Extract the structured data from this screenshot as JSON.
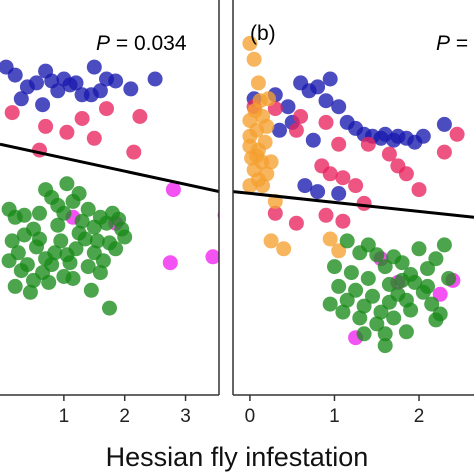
{
  "colors": {
    "blue": "#1a1ab0",
    "pink": "#e8245f",
    "magenta": "#ee22ee",
    "green": "#1a8a1a",
    "orange": "#f5a030",
    "line": "#000000",
    "frame": "#333333"
  },
  "xlabel": "Hessian fly infestation",
  "chart_data": [
    {
      "type": "scatter",
      "panel": "a",
      "label": "",
      "stat": "P = 0.034",
      "stat_parts": {
        "var": "P",
        "rest": " = 0.034"
      },
      "xlim": [
        -0.05,
        3.55
      ],
      "ylim": [
        0,
        10
      ],
      "xticks": [
        1,
        2,
        3
      ],
      "xtick_labels": [
        "1",
        "2",
        "3"
      ],
      "grid": false,
      "regression": {
        "x": [
          -0.05,
          3.55
        ],
        "y": [
          6.35,
          5.15
        ]
      },
      "groups": [
        {
          "color": "blue",
          "points": [
            [
              0.05,
              8.3
            ],
            [
              0.2,
              8.1
            ],
            [
              0.4,
              7.8
            ],
            [
              0.55,
              7.9
            ],
            [
              0.7,
              8.2
            ],
            [
              0.8,
              7.95
            ],
            [
              0.9,
              7.7
            ],
            [
              1.0,
              8.0
            ],
            [
              1.1,
              7.85
            ],
            [
              1.2,
              7.9
            ],
            [
              1.3,
              7.6
            ],
            [
              1.45,
              7.6
            ],
            [
              1.6,
              7.7
            ],
            [
              1.7,
              8.0
            ],
            [
              1.85,
              7.95
            ],
            [
              2.1,
              7.75
            ],
            [
              2.5,
              8.0
            ],
            [
              1.5,
              8.3
            ],
            [
              0.3,
              7.5
            ],
            [
              0.65,
              7.35
            ]
          ]
        },
        {
          "color": "pink",
          "points": [
            [
              0.15,
              7.15
            ],
            [
              0.7,
              6.8
            ],
            [
              1.3,
              7.0
            ],
            [
              1.7,
              7.25
            ],
            [
              2.25,
              7.05
            ],
            [
              1.05,
              6.65
            ],
            [
              0.6,
              6.2
            ],
            [
              2.15,
              6.15
            ],
            [
              1.5,
              6.5
            ]
          ]
        },
        {
          "color": "magenta",
          "points": [
            [
              2.8,
              5.2
            ],
            [
              3.65,
              4.55
            ],
            [
              3.45,
              3.5
            ],
            [
              2.75,
              3.35
            ],
            [
              1.85,
              4.35
            ],
            [
              1.15,
              4.5
            ]
          ]
        },
        {
          "color": "green",
          "points": [
            [
              0.1,
              4.7
            ],
            [
              0.2,
              4.5
            ],
            [
              0.35,
              4.55
            ],
            [
              0.5,
              4.2
            ],
            [
              0.6,
              4.6
            ],
            [
              0.7,
              5.2
            ],
            [
              0.8,
              5.0
            ],
            [
              0.9,
              4.8
            ],
            [
              1.0,
              4.6
            ],
            [
              1.05,
              5.35
            ],
            [
              1.15,
              4.9
            ],
            [
              1.25,
              5.1
            ],
            [
              1.3,
              4.4
            ],
            [
              1.4,
              4.7
            ],
            [
              1.5,
              4.25
            ],
            [
              1.6,
              4.5
            ],
            [
              1.7,
              4.35
            ],
            [
              1.8,
              4.6
            ],
            [
              1.9,
              4.45
            ],
            [
              2.0,
              4.0
            ],
            [
              1.75,
              3.85
            ],
            [
              1.5,
              3.6
            ],
            [
              1.35,
              3.95
            ],
            [
              1.2,
              3.7
            ],
            [
              1.1,
              3.35
            ],
            [
              0.95,
              3.9
            ],
            [
              0.85,
              3.6
            ],
            [
              0.7,
              3.45
            ],
            [
              0.55,
              3.75
            ],
            [
              0.4,
              3.3
            ],
            [
              0.25,
              3.6
            ],
            [
              0.15,
              3.9
            ],
            [
              0.3,
              3.15
            ],
            [
              0.5,
              2.9
            ],
            [
              0.65,
              3.1
            ],
            [
              0.8,
              3.3
            ],
            [
              1.0,
              3.0
            ],
            [
              1.4,
              3.25
            ],
            [
              1.6,
              3.1
            ],
            [
              1.85,
              3.7
            ],
            [
              0.2,
              2.75
            ],
            [
              0.45,
              2.6
            ],
            [
              1.15,
              2.95
            ],
            [
              1.45,
              2.65
            ],
            [
              1.75,
              2.2
            ],
            [
              1.65,
              3.4
            ],
            [
              1.95,
              4.2
            ],
            [
              1.25,
              4.1
            ],
            [
              0.9,
              4.3
            ],
            [
              0.6,
              3.95
            ],
            [
              0.35,
              4.05
            ],
            [
              0.1,
              3.4
            ],
            [
              0.75,
              2.85
            ],
            [
              1.05,
              3.55
            ],
            [
              1.55,
              3.9
            ]
          ]
        }
      ]
    },
    {
      "type": "scatter",
      "panel": "b",
      "label": "(b)",
      "stat": "P = ",
      "stat_parts": {
        "var": "P",
        "rest": " = "
      },
      "xlim": [
        -0.2,
        2.65
      ],
      "ylim": [
        0,
        10
      ],
      "xticks": [
        0,
        1,
        2
      ],
      "xtick_labels": [
        "0",
        "1",
        "2"
      ],
      "grid": false,
      "regression": {
        "x": [
          -0.2,
          2.65
        ],
        "y": [
          5.15,
          4.5
        ]
      },
      "groups": [
        {
          "color": "blue",
          "points": [
            [
              0.05,
              7.5
            ],
            [
              0.3,
              7.6
            ],
            [
              0.45,
              7.3
            ],
            [
              0.6,
              7.9
            ],
            [
              0.7,
              7.7
            ],
            [
              0.8,
              7.8
            ],
            [
              0.9,
              7.45
            ],
            [
              0.95,
              8.0
            ],
            [
              1.05,
              7.3
            ],
            [
              1.15,
              6.9
            ],
            [
              1.25,
              6.75
            ],
            [
              1.35,
              6.6
            ],
            [
              1.45,
              6.55
            ],
            [
              1.55,
              6.5
            ],
            [
              1.6,
              6.6
            ],
            [
              1.7,
              6.45
            ],
            [
              1.75,
              6.55
            ],
            [
              1.85,
              6.5
            ],
            [
              1.95,
              6.4
            ],
            [
              2.05,
              6.55
            ],
            [
              2.3,
              6.85
            ],
            [
              0.35,
              6.7
            ],
            [
              0.5,
              6.9
            ],
            [
              0.75,
              6.45
            ],
            [
              0.8,
              5.15
            ],
            [
              1.05,
              5.1
            ],
            [
              0.65,
              5.3
            ]
          ]
        },
        {
          "color": "pink",
          "points": [
            [
              0.05,
              7.3
            ],
            [
              0.3,
              7.25
            ],
            [
              0.55,
              6.7
            ],
            [
              0.6,
              7.05
            ],
            [
              0.9,
              6.9
            ],
            [
              1.05,
              6.35
            ],
            [
              0.85,
              5.8
            ],
            [
              0.95,
              5.6
            ],
            [
              1.1,
              5.5
            ],
            [
              1.25,
              5.3
            ],
            [
              1.35,
              4.85
            ],
            [
              1.4,
              6.35
            ],
            [
              1.65,
              6.1
            ],
            [
              1.75,
              5.8
            ],
            [
              1.85,
              5.6
            ],
            [
              2.0,
              5.2
            ],
            [
              2.3,
              6.15
            ],
            [
              2.45,
              6.6
            ],
            [
              0.3,
              4.6
            ],
            [
              0.55,
              4.35
            ],
            [
              1.1,
              4.4
            ],
            [
              0.9,
              4.55
            ]
          ]
        },
        {
          "color": "magenta",
          "points": [
            [
              1.25,
              1.45
            ],
            [
              2.25,
              2.55
            ],
            [
              2.4,
              2.9
            ],
            [
              1.75,
              2.85
            ],
            [
              1.55,
              3.45
            ]
          ]
        },
        {
          "color": "orange",
          "points": [
            [
              0.0,
              8.9
            ],
            [
              0.05,
              8.5
            ],
            [
              0.1,
              7.9
            ],
            [
              0.12,
              7.45
            ],
            [
              0.06,
              7.2
            ],
            [
              0.0,
              6.95
            ],
            [
              0.15,
              7.05
            ],
            [
              0.08,
              6.7
            ],
            [
              0.0,
              6.55
            ],
            [
              0.18,
              6.4
            ],
            [
              0.1,
              6.2
            ],
            [
              0.02,
              6.0
            ],
            [
              0.14,
              5.9
            ],
            [
              0.05,
              5.7
            ],
            [
              0.2,
              5.6
            ],
            [
              0.1,
              5.45
            ],
            [
              0.0,
              5.3
            ],
            [
              0.15,
              5.3
            ],
            [
              0.25,
              5.9
            ],
            [
              0.22,
              7.5
            ],
            [
              0.3,
              4.9
            ],
            [
              0.25,
              3.9
            ],
            [
              0.4,
              3.7
            ],
            [
              0.95,
              3.95
            ],
            [
              1.05,
              3.65
            ],
            [
              0.2,
              6.8
            ],
            [
              0.08,
              6.05
            ],
            [
              0.0,
              6.3
            ]
          ]
        },
        {
          "color": "green",
          "points": [
            [
              1.15,
              3.9
            ],
            [
              1.3,
              3.6
            ],
            [
              1.4,
              3.8
            ],
            [
              1.5,
              3.55
            ],
            [
              1.6,
              3.25
            ],
            [
              1.7,
              3.5
            ],
            [
              1.8,
              3.35
            ],
            [
              1.9,
              3.05
            ],
            [
              2.0,
              3.7
            ],
            [
              2.1,
              3.2
            ],
            [
              2.2,
              3.45
            ],
            [
              2.3,
              3.8
            ],
            [
              2.05,
              2.6
            ],
            [
              1.95,
              2.85
            ],
            [
              1.85,
              2.4
            ],
            [
              1.75,
              2.55
            ],
            [
              1.65,
              2.35
            ],
            [
              1.55,
              2.1
            ],
            [
              1.45,
              2.5
            ],
            [
              1.35,
              2.25
            ],
            [
              1.25,
              2.65
            ],
            [
              1.15,
              2.4
            ],
            [
              1.05,
              2.75
            ],
            [
              0.95,
              2.3
            ],
            [
              1.1,
              2.1
            ],
            [
              1.3,
              1.95
            ],
            [
              1.5,
              1.8
            ],
            [
              1.7,
              1.95
            ],
            [
              1.9,
              2.15
            ],
            [
              2.15,
              2.3
            ],
            [
              2.25,
              2.05
            ],
            [
              1.6,
              1.55
            ],
            [
              1.85,
              1.6
            ],
            [
              2.2,
              1.9
            ],
            [
              1.4,
              2.95
            ],
            [
              1.2,
              3.1
            ],
            [
              2.35,
              2.95
            ],
            [
              1.0,
              3.25
            ],
            [
              1.65,
              2.8
            ],
            [
              1.8,
              2.9
            ],
            [
              2.1,
              2.75
            ],
            [
              1.35,
              1.55
            ],
            [
              1.6,
              1.25
            ]
          ]
        }
      ]
    }
  ]
}
